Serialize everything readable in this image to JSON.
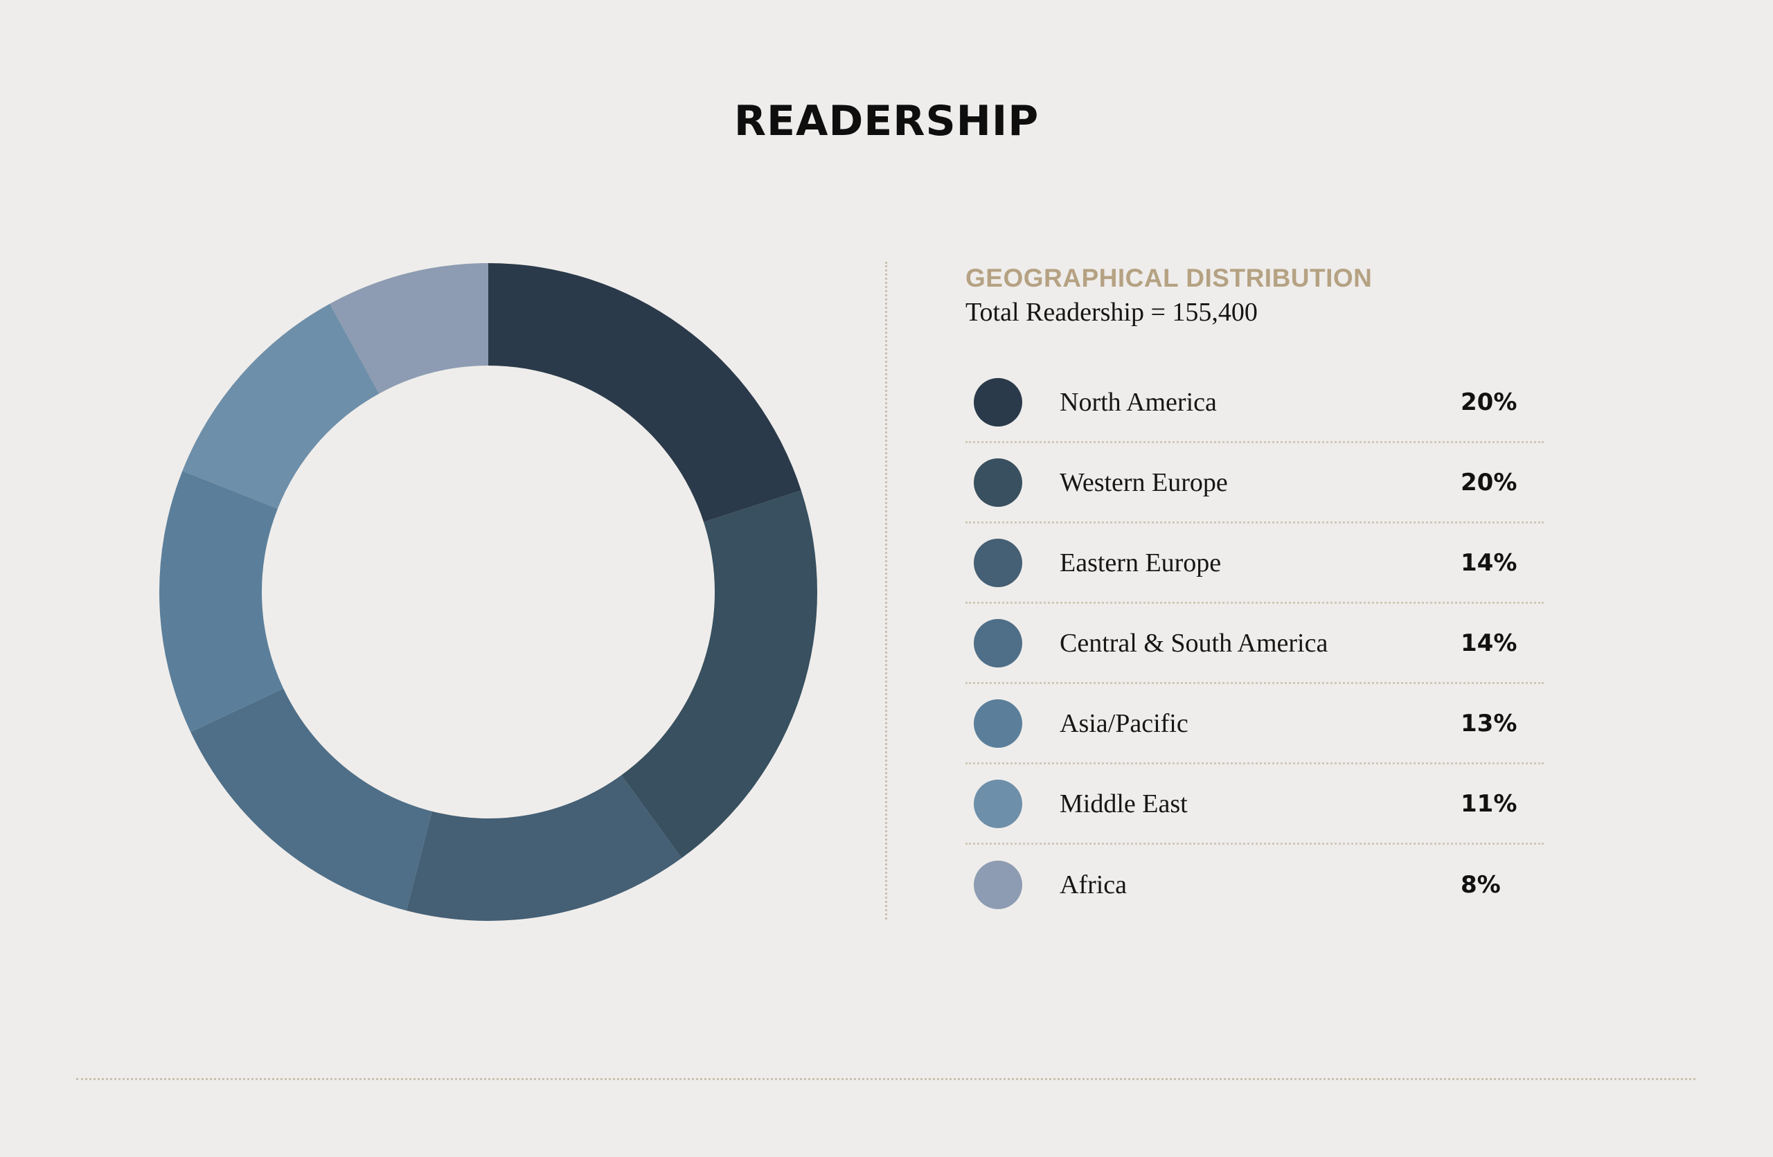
{
  "page": {
    "title": "READERSHIP"
  },
  "panel": {
    "heading": "GEOGRAPHICAL DISTRIBUTION",
    "subheading": "Total Readership = 155,400"
  },
  "chart_data": {
    "type": "pie",
    "variant": "donut",
    "title": "GEOGRAPHICAL DISTRIBUTION",
    "total_label": "Total Readership = 155,400",
    "total": 155400,
    "unit": "%",
    "legend_position": "right",
    "slices": [
      {
        "label": "North America",
        "value": 20,
        "display": "20%",
        "color": "#2a3a4a"
      },
      {
        "label": "Western Europe",
        "value": 20,
        "display": "20%",
        "color": "#38505f"
      },
      {
        "label": "Eastern Europe",
        "value": 14,
        "display": "14%",
        "color": "#455f74"
      },
      {
        "label": "Central & South America",
        "value": 14,
        "display": "14%",
        "color": "#4f6f88"
      },
      {
        "label": "Asia/Pacific",
        "value": 13,
        "display": "13%",
        "color": "#5b7f9b"
      },
      {
        "label": "Middle East",
        "value": 11,
        "display": "11%",
        "color": "#6e8fa9"
      },
      {
        "label": "Africa",
        "value": 8,
        "display": "8%",
        "color": "#8d9cb2"
      }
    ]
  },
  "colors": {
    "background": "#efedeb",
    "accent": "#b5a283",
    "divider": "#c9c1b0"
  }
}
